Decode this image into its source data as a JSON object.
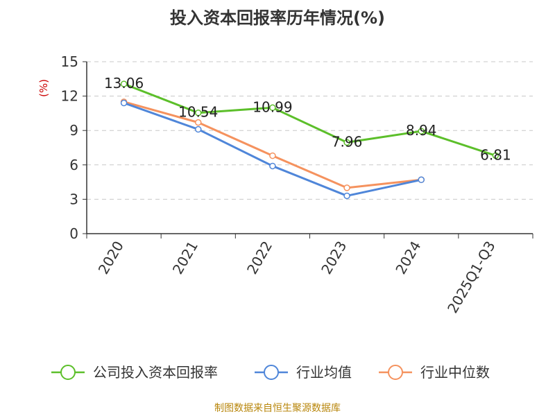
{
  "chart_data": {
    "type": "line",
    "title": "投入资本回报率历年情况(%)",
    "ylabel": "(%)",
    "xlabel": "",
    "ylim": [
      0,
      15
    ],
    "yticks": [
      0,
      3,
      6,
      9,
      12,
      15
    ],
    "categories": [
      "2020",
      "2021",
      "2022",
      "2023",
      "2024",
      "2025Q1-Q3"
    ],
    "grid": true,
    "legend_position": "bottom",
    "series": [
      {
        "name": "公司投入资本回报率",
        "color": "#5cbf2a",
        "values": [
          13.06,
          10.54,
          10.99,
          7.96,
          8.94,
          6.81
        ],
        "labels": [
          "13.06",
          "10.54",
          "10.99",
          "7.96",
          "8.94",
          "6.81"
        ]
      },
      {
        "name": "行业均值",
        "color": "#4f86d9",
        "values": [
          11.4,
          9.1,
          5.9,
          3.3,
          4.7,
          null
        ]
      },
      {
        "name": "行业中位数",
        "color": "#f5925e",
        "values": [
          11.5,
          9.7,
          6.8,
          4.0,
          4.7,
          null
        ]
      }
    ]
  },
  "footer": "制图数据来自恒生聚源数据库"
}
